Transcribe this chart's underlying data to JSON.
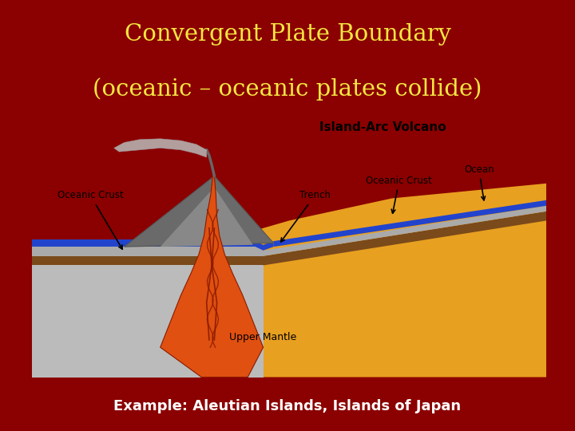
{
  "title_line1": "Convergent Plate Boundary",
  "title_line2": "(oceanic – oceanic plates collide)",
  "title_color": "#F5E642",
  "title_bg_color": "#8B0000",
  "example_text": "Example: Aleutian Islands, Islands of Japan",
  "example_text_color": "#FFFFFF",
  "diagram_bg": "#FFFFFF",
  "label_island_arc": "Island-Arc Volcano",
  "label_oceanic_crust_left": "Oceanic Crust",
  "label_oceanic_crust_right": "Oceanic Crust",
  "label_trench": "Trench",
  "label_ocean": "Ocean",
  "label_upper_mantle": "Upper Mantle",
  "water_color": "#2244CC",
  "mantle_color": "#E8A020",
  "crust_color": "#7B4A1A",
  "volcano_color": "#707070",
  "magma_color": "#E05010",
  "sky_color": "#FFFFFF",
  "smoke_color": "#AAAAAA",
  "gray_plate_color": "#AAAAAA",
  "lava_line_color": "#8B1A00"
}
